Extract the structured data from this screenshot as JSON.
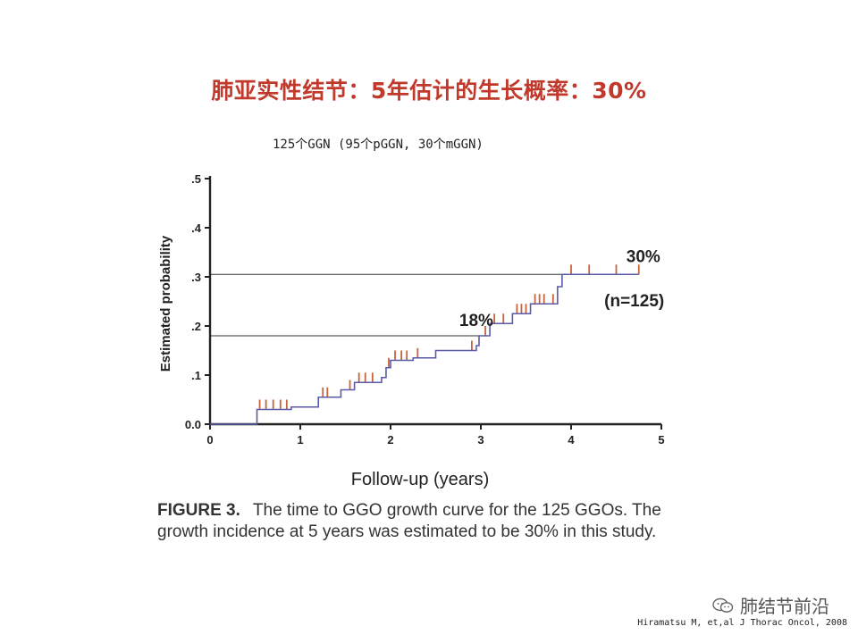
{
  "slide": {
    "title": "肺亚实性结节：5年估计的生长概率：30%",
    "subtitle": "125个GGN (95个pGGN, 30个mGGN)"
  },
  "caption": {
    "label": "FIGURE 3.",
    "text": "The time to GGO growth curve for the 125 GGOs. The growth incidence at 5 years was estimated to be 30% in this study."
  },
  "watermark": {
    "icon": "wechat-icon",
    "text": "肺结节前沿"
  },
  "citation": "Hiramatsu M, et,al J Thorac Oncol, 2008",
  "chart_data": {
    "type": "line",
    "step": true,
    "xlabel": "Follow-up (years)",
    "ylabel": "Estimated probability",
    "xlim": [
      0,
      5
    ],
    "ylim": [
      0,
      0.5
    ],
    "xticks": [
      0,
      1,
      2,
      3,
      4,
      5
    ],
    "xtick_labels": [
      "0",
      "1",
      "2",
      "3",
      "4",
      "5"
    ],
    "yticks": [
      0,
      0.1,
      0.2,
      0.3,
      0.4,
      0.5
    ],
    "ytick_labels": [
      "0.0",
      ".1",
      ".2",
      ".3",
      ".4",
      ".5"
    ],
    "grid": false,
    "series": [
      {
        "line_color": "#5a5aa8",
        "censor_color": "#c8643c",
        "x": [
          0,
          0.5,
          0.52,
          0.9,
          1.2,
          1.45,
          1.6,
          1.9,
          1.95,
          2.0,
          2.25,
          2.5,
          2.95,
          2.98,
          3.1,
          3.35,
          3.55,
          3.85,
          3.9,
          4.75
        ],
        "y": [
          0,
          0,
          0.03,
          0.035,
          0.055,
          0.07,
          0.085,
          0.095,
          0.115,
          0.13,
          0.135,
          0.15,
          0.16,
          0.18,
          0.205,
          0.225,
          0.245,
          0.28,
          0.305,
          0.305
        ],
        "censored": [
          0.55,
          0.62,
          0.7,
          0.78,
          0.85,
          1.25,
          1.3,
          1.55,
          1.65,
          1.72,
          1.8,
          1.98,
          2.05,
          2.12,
          2.18,
          2.3,
          2.9,
          3.05,
          3.15,
          3.25,
          3.4,
          3.45,
          3.5,
          3.6,
          3.65,
          3.7,
          3.8,
          4.0,
          4.2,
          4.5,
          4.75
        ]
      }
    ],
    "reference_lines": [
      0.18,
      0.305
    ],
    "annotations": [
      {
        "text": "30%",
        "x": 4.8,
        "y": 0.33
      },
      {
        "text": "(n=125)",
        "x": 4.7,
        "y": 0.24
      },
      {
        "text": "18%",
        "x": 2.95,
        "y": 0.2
      }
    ]
  }
}
